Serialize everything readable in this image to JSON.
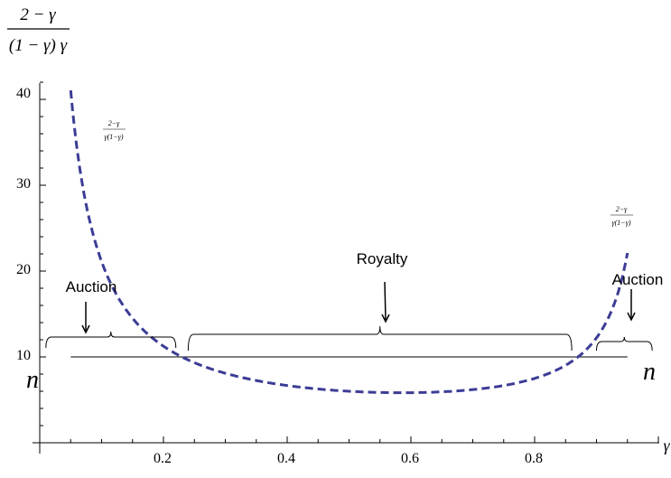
{
  "chart_data": {
    "type": "line",
    "title": "",
    "ylabel_numerator": "2 − γ",
    "ylabel_denominator": "(1 − γ) γ",
    "xlabel": "γ",
    "xlim": [
      0,
      1
    ],
    "ylim": [
      0,
      43
    ],
    "x_ticks": [
      "0.2",
      "0.4",
      "0.6",
      "0.8"
    ],
    "x_tick_values": [
      0.2,
      0.4,
      0.6,
      0.8
    ],
    "y_ticks": [
      "10",
      "20",
      "30",
      "40"
    ],
    "y_tick_values": [
      10,
      20,
      30,
      40
    ],
    "grid": false,
    "series": [
      {
        "style": "dashed",
        "color": "#3c3c96",
        "formula": "(2-x)/((1-x)*x)",
        "x_range": [
          0.05,
          0.95
        ]
      }
    ],
    "constant_line": {
      "y": 10,
      "x_range": [
        0.05,
        0.95
      ]
    },
    "annotations": [
      {
        "id": "formula_left",
        "text": "2−γ",
        "subtext": "γ(1−γ)"
      },
      {
        "id": "formula_right",
        "text": "2−γ",
        "subtext": "γ(1−γ)"
      },
      {
        "id": "auction_left",
        "text": "Auction",
        "brace": [
          0.01,
          0.22
        ]
      },
      {
        "id": "royalty",
        "text": "Royalty",
        "brace": [
          0.24,
          0.86
        ]
      },
      {
        "id": "auction_right",
        "text": "Auction",
        "brace": [
          0.9,
          0.99
        ]
      },
      {
        "id": "n_left",
        "text": "n"
      },
      {
        "id": "n_right",
        "text": "n"
      }
    ]
  }
}
